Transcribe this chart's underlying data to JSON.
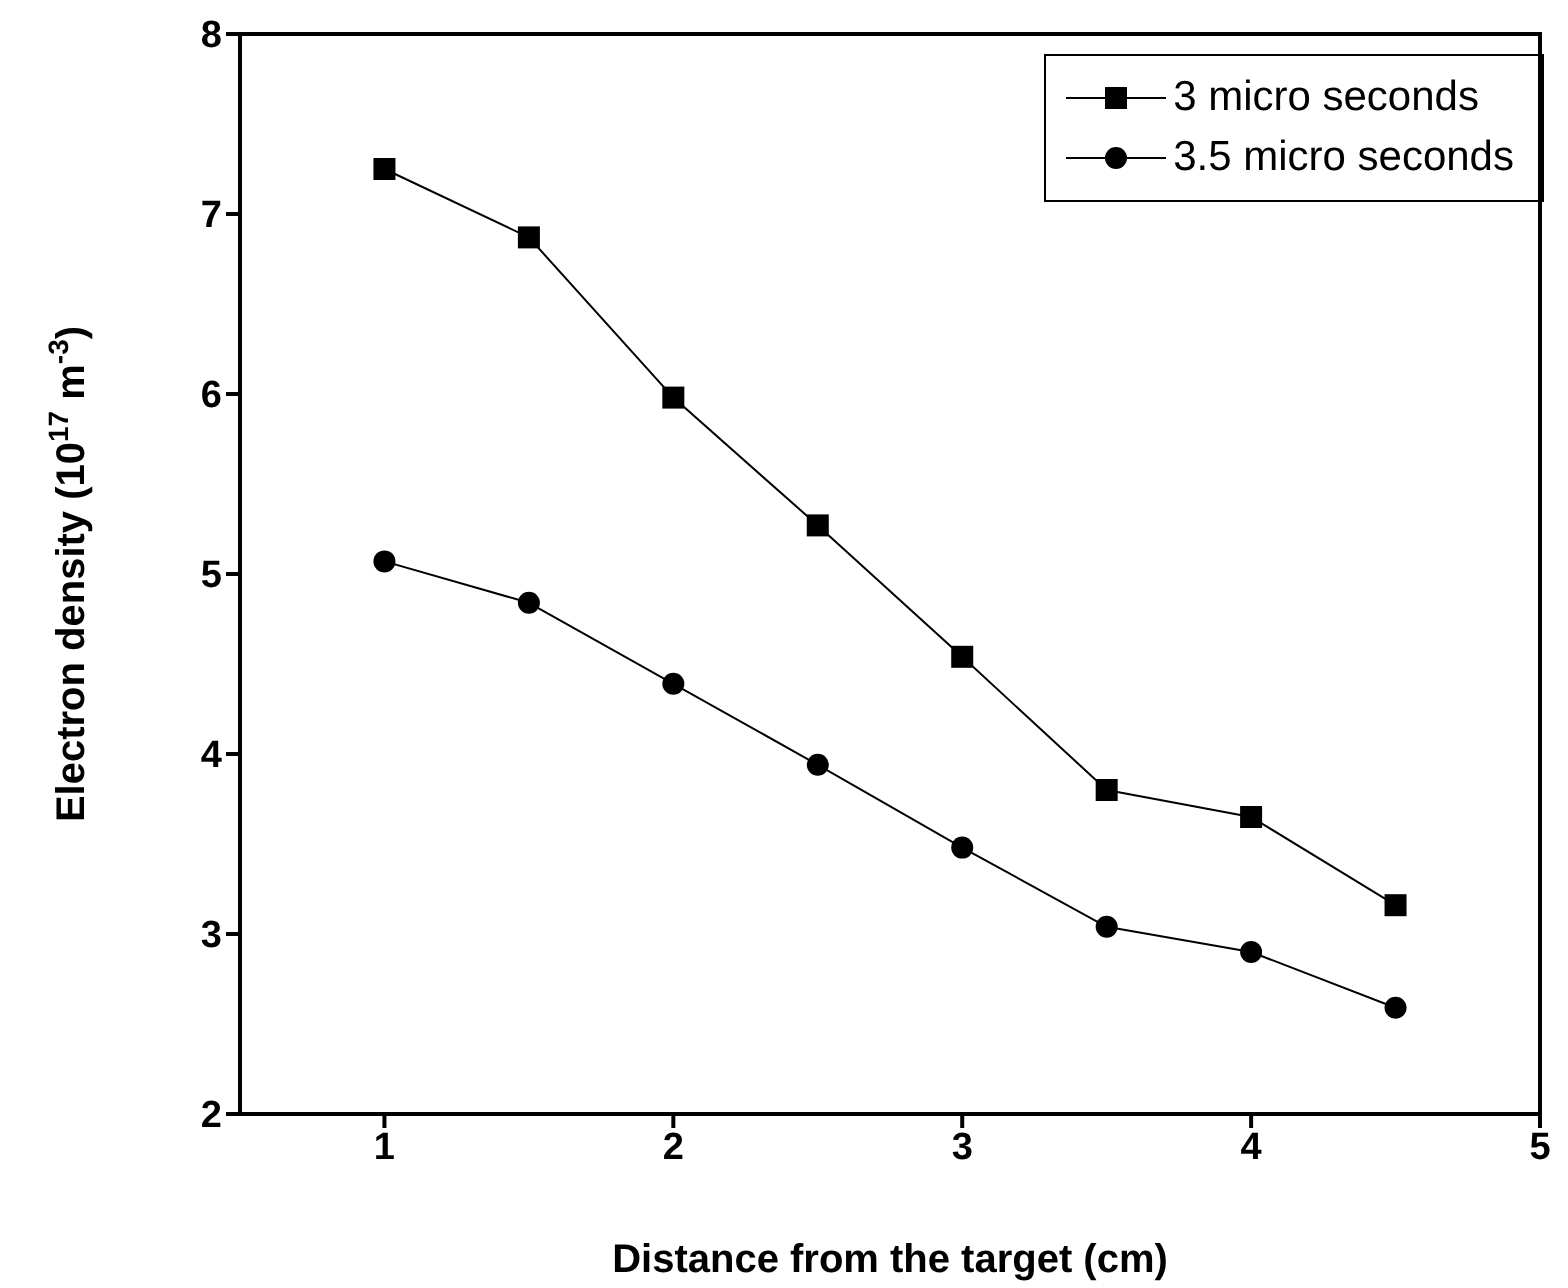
{
  "chart_data": {
    "type": "line",
    "xlabel": "Distance from the target (cm)",
    "ylabel": "Electron density (10$^{17}$ m$^{-3}$)",
    "x": [
      1,
      1.5,
      2,
      2.5,
      3,
      3.5,
      4,
      4.5
    ],
    "series": [
      {
        "name": "3 micro seconds",
        "color": "#000000",
        "marker": "square",
        "values": [
          7.25,
          6.87,
          5.98,
          5.27,
          4.54,
          3.8,
          3.65,
          3.16
        ]
      },
      {
        "name": "3.5 micro seconds",
        "color": "#000000",
        "marker": "circle",
        "values": [
          5.07,
          4.84,
          4.39,
          3.94,
          3.48,
          3.04,
          2.9,
          2.59
        ]
      }
    ],
    "xlim": [
      0.5,
      5
    ],
    "xticks": [
      1,
      2,
      3,
      4,
      5
    ],
    "ylim": [
      2,
      8
    ],
    "yticks": [
      2,
      3,
      4,
      5,
      6,
      7,
      8
    ],
    "grid": false,
    "legend": "top right",
    "line_style": "solid"
  }
}
